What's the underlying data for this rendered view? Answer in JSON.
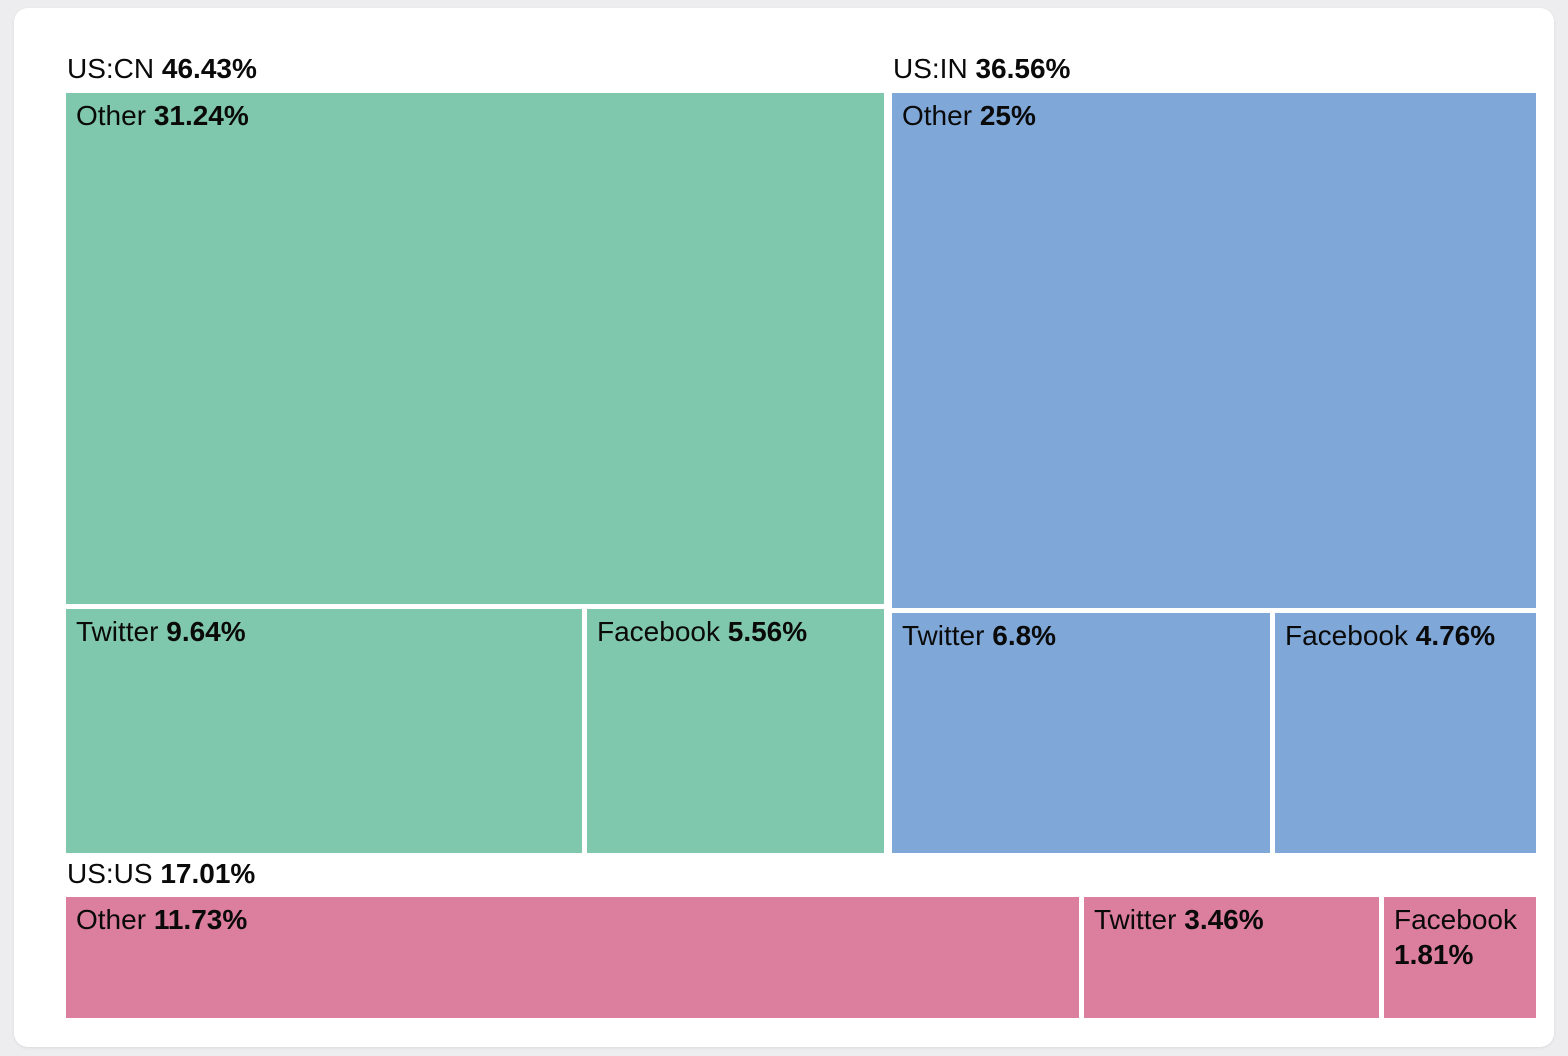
{
  "chart_data": {
    "type": "treemap",
    "title": "",
    "unit": "%",
    "legend": "none",
    "layout_hint": "US:CN group top-left column, US:IN group top-right column, US:US group full-width bottom strip; 'Other' cell spans full group width on top, Twitter and Facebook side-by-side below; labels top-left of each cell",
    "groups": [
      {
        "name": "US:CN",
        "value": 46.43,
        "value_label": "46.43%",
        "color": "#7fc8ad",
        "children": [
          {
            "name": "Other",
            "value": 31.24,
            "value_label": "31.24%"
          },
          {
            "name": "Twitter",
            "value": 9.64,
            "value_label": "9.64%"
          },
          {
            "name": "Facebook",
            "value": 5.56,
            "value_label": "5.56%"
          }
        ]
      },
      {
        "name": "US:IN",
        "value": 36.56,
        "value_label": "36.56%",
        "color": "#7fa8d9",
        "children": [
          {
            "name": "Other",
            "value": 25,
            "value_label": "25%"
          },
          {
            "name": "Twitter",
            "value": 6.8,
            "value_label": "6.8%"
          },
          {
            "name": "Facebook",
            "value": 4.76,
            "value_label": "4.76%"
          }
        ]
      },
      {
        "name": "US:US",
        "value": 17.01,
        "value_label": "17.01%",
        "color": "#dc7e9d",
        "children": [
          {
            "name": "Other",
            "value": 11.73,
            "value_label": "11.73%"
          },
          {
            "name": "Twitter",
            "value": 3.46,
            "value_label": "3.46%"
          },
          {
            "name": "Facebook",
            "value": 1.81,
            "value_label": "1.81%"
          }
        ]
      }
    ]
  },
  "colors": {
    "page_background": "#ededef",
    "card_background": "#ffffff",
    "text": "#0a0a0a",
    "group_us_cn": "#7fc8ad",
    "group_us_in": "#7fa8d9",
    "group_us_us": "#dc7e9d"
  }
}
